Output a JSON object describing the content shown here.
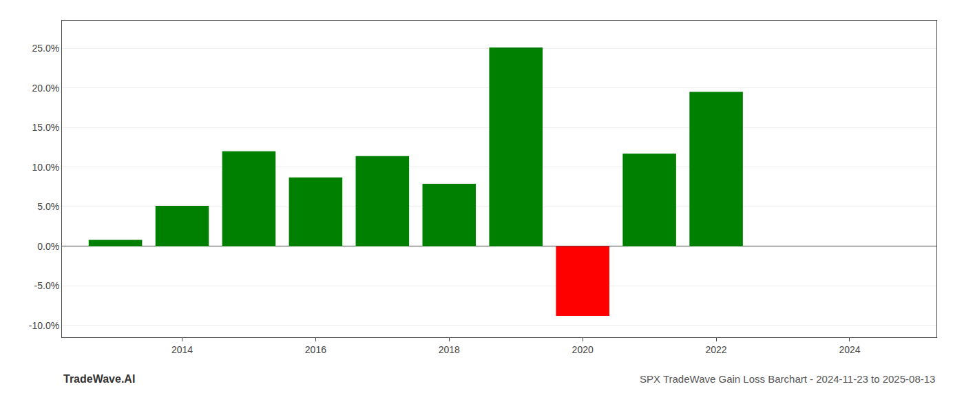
{
  "chart_data": {
    "type": "bar",
    "title": "SPX TradeWave Gain Loss Barchart - 2024-11-23 to 2025-08-13",
    "annotations": [
      "TradeWave.AI"
    ],
    "x": [
      2013,
      2014,
      2015,
      2016,
      2017,
      2018,
      2019,
      2020,
      2021,
      2022,
      2023
    ],
    "values": [
      0.008,
      0.051,
      0.12,
      0.087,
      0.114,
      0.079,
      0.251,
      -0.088,
      0.117,
      0.195,
      0.0
    ],
    "colors": [
      "#008000",
      "#008000",
      "#008000",
      "#008000",
      "#008000",
      "#008000",
      "#008000",
      "#ff0000",
      "#008000",
      "#008000",
      "#008000"
    ],
    "xlim": [
      2012.2,
      2025.3
    ],
    "xticks": [
      2014,
      2016,
      2018,
      2020,
      2022,
      2024
    ],
    "ylim": [
      -0.115,
      0.285
    ],
    "yticks": [
      {
        "value": -0.1,
        "label": "-10.0%"
      },
      {
        "value": -0.05,
        "label": "-5.0%"
      },
      {
        "value": 0.0,
        "label": "0.0%"
      },
      {
        "value": 0.05,
        "label": "5.0%"
      },
      {
        "value": 0.1,
        "label": "10.0%"
      },
      {
        "value": 0.15,
        "label": "15.0%"
      },
      {
        "value": 0.2,
        "label": "20.0%"
      },
      {
        "value": 0.25,
        "label": "25.0%"
      }
    ],
    "grid": true
  }
}
